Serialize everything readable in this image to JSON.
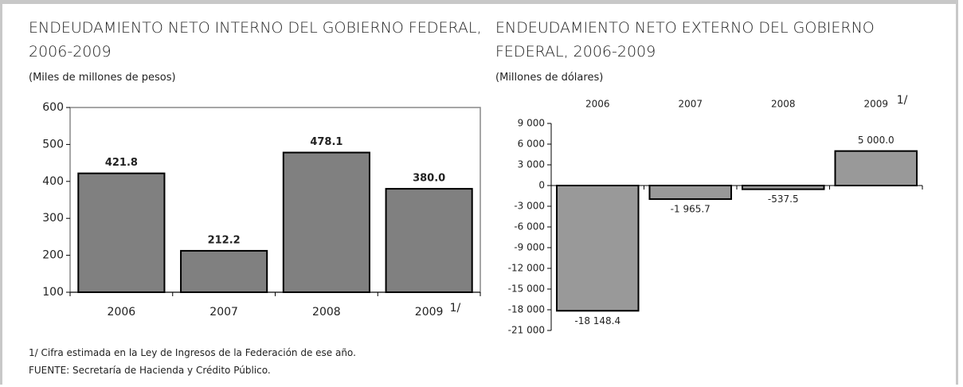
{
  "chart_data": [
    {
      "type": "bar",
      "title": "ENDEUDAMIENTO NETO INTERNO DEL GOBIERNO FEDERAL, 2006-2009",
      "subtitle": "(Miles de millones de pesos)",
      "categories": [
        "2006",
        "2007",
        "2008",
        "2009"
      ],
      "annotations": [
        "1/"
      ],
      "values": [
        421.8,
        212.2,
        478.1,
        380.0
      ],
      "value_labels": [
        "421.8",
        "212.2",
        "478.1",
        "380.0"
      ],
      "color": "#808080",
      "ylim": [
        100,
        600
      ],
      "yticks": [
        100,
        200,
        300,
        400,
        500,
        600
      ],
      "grid": false
    },
    {
      "type": "bar",
      "title": "ENDEUDAMIENTO NETO EXTERNO DEL GOBIERNO FEDERAL, 2006-2009",
      "subtitle": "(Millones de dólares)",
      "categories": [
        "2006",
        "2007",
        "2008",
        "2009"
      ],
      "annotations": [
        "1/"
      ],
      "values": [
        -18148.4,
        -1965.7,
        -537.5,
        5000.0
      ],
      "value_labels": [
        "-18 148.4",
        "-1 965.7",
        "-537.5",
        "5 000.0"
      ],
      "color": "#999999",
      "ylim": [
        -21000,
        9000
      ],
      "yticks": [
        {
          "value": 9000,
          "label": "9 000"
        },
        {
          "value": 6000,
          "label": "6 000"
        },
        {
          "value": 3000,
          "label": "3 000"
        },
        0,
        {
          "value": -3000,
          "label": "-3 000"
        },
        {
          "value": -6000,
          "label": "-6 000"
        },
        {
          "value": -9000,
          "label": "-9 000"
        },
        {
          "value": -12000,
          "label": "-12 000"
        },
        {
          "value": -15000,
          "label": "-15 000"
        },
        {
          "value": -18000,
          "label": "-18 000"
        },
        {
          "value": -21000,
          "label": "-21 000"
        }
      ],
      "grid": false
    }
  ],
  "notes": [
    "1/ Cifra estimada en la Ley de Ingresos de la Federación de ese año.",
    "FUENTE: Secretaría de Hacienda y Crédito Público."
  ]
}
